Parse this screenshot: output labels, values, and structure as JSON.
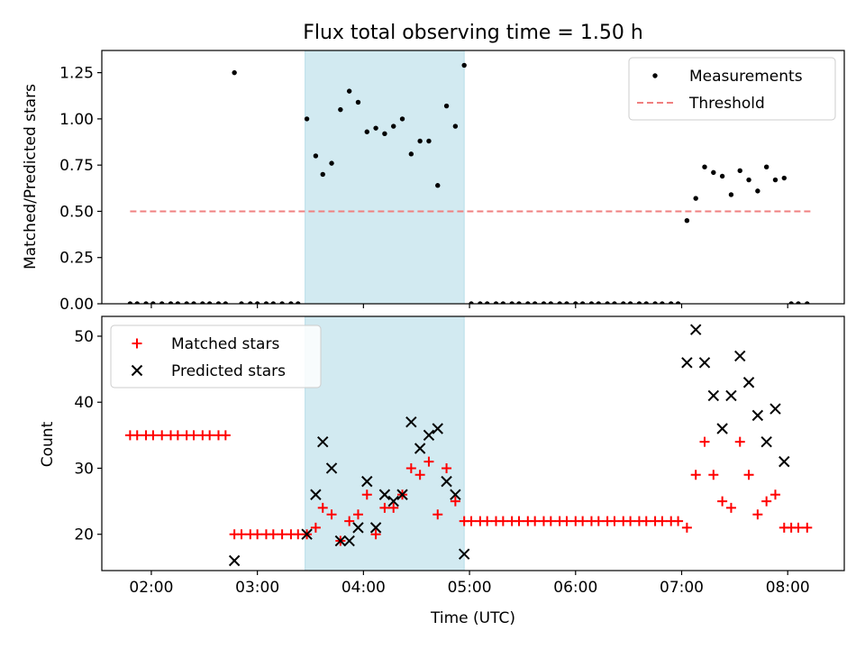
{
  "chart_data": [
    {
      "type": "scatter",
      "title": "Flux total observing time = 1.50 h",
      "xlabel": "",
      "ylabel": "Matched/Predicted stars",
      "xlim": [
        "01:32",
        "08:32"
      ],
      "ylim": [
        0,
        1.37
      ],
      "yticks": [
        0.0,
        0.25,
        0.5,
        0.75,
        1.0,
        1.25
      ],
      "ytick_labels": [
        "0.00",
        "0.25",
        "0.50",
        "0.75",
        "1.00",
        "1.25"
      ],
      "xticks": [
        "02:00",
        "03:00",
        "04:00",
        "05:00",
        "06:00",
        "07:00",
        "08:00"
      ],
      "show_xtick_labels": false,
      "shaded_interval": {
        "start": "03:27",
        "end": "04:57",
        "color": "#add8e6"
      },
      "legend": {
        "position": "upper right",
        "entries": [
          "Measurements",
          "Threshold"
        ]
      },
      "series": [
        {
          "name": "Measurements",
          "marker": "dot",
          "color": "#000000",
          "points": [
            [
              "01:48",
              0
            ],
            [
              "01:52",
              0
            ],
            [
              "01:57",
              0
            ],
            [
              "02:01",
              0
            ],
            [
              "02:06",
              0
            ],
            [
              "02:11",
              0
            ],
            [
              "02:15",
              0
            ],
            [
              "02:20",
              0
            ],
            [
              "02:24",
              0
            ],
            [
              "02:29",
              0
            ],
            [
              "02:33",
              0
            ],
            [
              "02:38",
              0
            ],
            [
              "02:42",
              0
            ],
            [
              "02:47",
              1.25
            ],
            [
              "02:51",
              0
            ],
            [
              "02:56",
              0
            ],
            [
              "03:00",
              0
            ],
            [
              "03:05",
              0
            ],
            [
              "03:09",
              0
            ],
            [
              "03:14",
              0
            ],
            [
              "03:19",
              0
            ],
            [
              "03:23",
              0
            ],
            [
              "03:28",
              1.0
            ],
            [
              "03:33",
              0.8
            ],
            [
              "03:37",
              0.7
            ],
            [
              "03:42",
              0.76
            ],
            [
              "03:47",
              1.05
            ],
            [
              "03:52",
              1.15
            ],
            [
              "03:57",
              1.09
            ],
            [
              "04:02",
              0.93
            ],
            [
              "04:07",
              0.95
            ],
            [
              "04:12",
              0.92
            ],
            [
              "04:17",
              0.96
            ],
            [
              "04:22",
              1.0
            ],
            [
              "04:27",
              0.81
            ],
            [
              "04:32",
              0.88
            ],
            [
              "04:37",
              0.88
            ],
            [
              "04:42",
              0.64
            ],
            [
              "04:47",
              1.07
            ],
            [
              "04:52",
              0.96
            ],
            [
              "04:57",
              1.29
            ],
            [
              "05:01",
              0
            ],
            [
              "05:06",
              0
            ],
            [
              "05:10",
              0
            ],
            [
              "05:15",
              0
            ],
            [
              "05:19",
              0
            ],
            [
              "05:24",
              0
            ],
            [
              "05:28",
              0
            ],
            [
              "05:33",
              0
            ],
            [
              "05:37",
              0
            ],
            [
              "05:42",
              0
            ],
            [
              "05:46",
              0
            ],
            [
              "05:51",
              0
            ],
            [
              "05:55",
              0
            ],
            [
              "06:00",
              0
            ],
            [
              "06:04",
              0
            ],
            [
              "06:09",
              0
            ],
            [
              "06:13",
              0
            ],
            [
              "06:18",
              0
            ],
            [
              "06:22",
              0
            ],
            [
              "06:27",
              0
            ],
            [
              "06:31",
              0
            ],
            [
              "06:36",
              0
            ],
            [
              "06:40",
              0
            ],
            [
              "06:45",
              0
            ],
            [
              "06:49",
              0
            ],
            [
              "06:54",
              0
            ],
            [
              "06:58",
              0
            ],
            [
              "07:03",
              0.45
            ],
            [
              "07:08",
              0.57
            ],
            [
              "07:13",
              0.74
            ],
            [
              "07:18",
              0.71
            ],
            [
              "07:23",
              0.69
            ],
            [
              "07:28",
              0.59
            ],
            [
              "07:33",
              0.72
            ],
            [
              "07:38",
              0.67
            ],
            [
              "07:43",
              0.61
            ],
            [
              "07:48",
              0.74
            ],
            [
              "07:53",
              0.67
            ],
            [
              "07:58",
              0.68
            ],
            [
              "08:02",
              0
            ],
            [
              "08:06",
              0
            ],
            [
              "08:11",
              0
            ]
          ]
        },
        {
          "name": "Threshold",
          "line_style": "dashed",
          "color": "#f08080",
          "x": [
            "01:48",
            "08:14"
          ],
          "y": [
            0.5,
            0.5
          ]
        }
      ]
    },
    {
      "type": "scatter",
      "title": "",
      "xlabel": "Time (UTC)",
      "ylabel": "Count",
      "xlim": [
        "01:32",
        "08:32"
      ],
      "ylim": [
        14.5,
        53
      ],
      "yticks": [
        20,
        30,
        40,
        50
      ],
      "ytick_labels": [
        "20",
        "30",
        "40",
        "50"
      ],
      "xticks": [
        "02:00",
        "03:00",
        "04:00",
        "05:00",
        "06:00",
        "07:00",
        "08:00"
      ],
      "xtick_labels": [
        "02:00",
        "03:00",
        "04:00",
        "05:00",
        "06:00",
        "07:00",
        "08:00"
      ],
      "show_xtick_labels": true,
      "shaded_interval": {
        "start": "03:27",
        "end": "04:57",
        "color": "#add8e6"
      },
      "legend": {
        "position": "upper left",
        "entries": [
          "Matched stars",
          "Predicted stars"
        ]
      },
      "series": [
        {
          "name": "Matched stars",
          "marker": "plus",
          "color": "#ff0000",
          "points": [
            [
              "01:48",
              35
            ],
            [
              "01:52",
              35
            ],
            [
              "01:57",
              35
            ],
            [
              "02:01",
              35
            ],
            [
              "02:06",
              35
            ],
            [
              "02:11",
              35
            ],
            [
              "02:15",
              35
            ],
            [
              "02:20",
              35
            ],
            [
              "02:24",
              35
            ],
            [
              "02:29",
              35
            ],
            [
              "02:33",
              35
            ],
            [
              "02:38",
              35
            ],
            [
              "02:42",
              35
            ],
            [
              "02:47",
              20
            ],
            [
              "02:51",
              20
            ],
            [
              "02:56",
              20
            ],
            [
              "03:00",
              20
            ],
            [
              "03:05",
              20
            ],
            [
              "03:09",
              20
            ],
            [
              "03:14",
              20
            ],
            [
              "03:19",
              20
            ],
            [
              "03:23",
              20
            ],
            [
              "03:28",
              20
            ],
            [
              "03:33",
              21
            ],
            [
              "03:37",
              24
            ],
            [
              "03:42",
              23
            ],
            [
              "03:47",
              19
            ],
            [
              "03:52",
              22
            ],
            [
              "03:57",
              23
            ],
            [
              "04:02",
              26
            ],
            [
              "04:07",
              20
            ],
            [
              "04:12",
              24
            ],
            [
              "04:17",
              24
            ],
            [
              "04:22",
              26
            ],
            [
              "04:27",
              30
            ],
            [
              "04:32",
              29
            ],
            [
              "04:37",
              31
            ],
            [
              "04:42",
              23
            ],
            [
              "04:47",
              30
            ],
            [
              "04:52",
              25
            ],
            [
              "04:57",
              22
            ],
            [
              "05:01",
              22
            ],
            [
              "05:06",
              22
            ],
            [
              "05:10",
              22
            ],
            [
              "05:15",
              22
            ],
            [
              "05:19",
              22
            ],
            [
              "05:24",
              22
            ],
            [
              "05:28",
              22
            ],
            [
              "05:33",
              22
            ],
            [
              "05:37",
              22
            ],
            [
              "05:42",
              22
            ],
            [
              "05:46",
              22
            ],
            [
              "05:51",
              22
            ],
            [
              "05:55",
              22
            ],
            [
              "06:00",
              22
            ],
            [
              "06:04",
              22
            ],
            [
              "06:09",
              22
            ],
            [
              "06:13",
              22
            ],
            [
              "06:18",
              22
            ],
            [
              "06:22",
              22
            ],
            [
              "06:27",
              22
            ],
            [
              "06:31",
              22
            ],
            [
              "06:36",
              22
            ],
            [
              "06:40",
              22
            ],
            [
              "06:45",
              22
            ],
            [
              "06:49",
              22
            ],
            [
              "06:54",
              22
            ],
            [
              "06:58",
              22
            ],
            [
              "07:03",
              21
            ],
            [
              "07:08",
              29
            ],
            [
              "07:13",
              34
            ],
            [
              "07:18",
              29
            ],
            [
              "07:23",
              25
            ],
            [
              "07:28",
              24
            ],
            [
              "07:33",
              34
            ],
            [
              "07:38",
              29
            ],
            [
              "07:43",
              23
            ],
            [
              "07:48",
              25
            ],
            [
              "07:53",
              26
            ],
            [
              "07:58",
              21
            ],
            [
              "08:02",
              21
            ],
            [
              "08:06",
              21
            ],
            [
              "08:11",
              21
            ]
          ]
        },
        {
          "name": "Predicted stars",
          "marker": "x",
          "color": "#000000",
          "points": [
            [
              "02:47",
              16
            ],
            [
              "03:28",
              20
            ],
            [
              "03:33",
              26
            ],
            [
              "03:37",
              34
            ],
            [
              "03:42",
              30
            ],
            [
              "03:47",
              19
            ],
            [
              "03:52",
              19
            ],
            [
              "03:57",
              21
            ],
            [
              "04:02",
              28
            ],
            [
              "04:07",
              21
            ],
            [
              "04:12",
              26
            ],
            [
              "04:17",
              25
            ],
            [
              "04:22",
              26
            ],
            [
              "04:27",
              37
            ],
            [
              "04:32",
              33
            ],
            [
              "04:37",
              35
            ],
            [
              "04:42",
              36
            ],
            [
              "04:47",
              28
            ],
            [
              "04:52",
              26
            ],
            [
              "04:57",
              17
            ],
            [
              "07:03",
              46
            ],
            [
              "07:08",
              51
            ],
            [
              "07:13",
              46
            ],
            [
              "07:18",
              41
            ],
            [
              "07:23",
              36
            ],
            [
              "07:28",
              41
            ],
            [
              "07:33",
              47
            ],
            [
              "07:38",
              43
            ],
            [
              "07:43",
              38
            ],
            [
              "07:48",
              34
            ],
            [
              "07:53",
              39
            ],
            [
              "07:58",
              31
            ]
          ]
        }
      ]
    }
  ]
}
